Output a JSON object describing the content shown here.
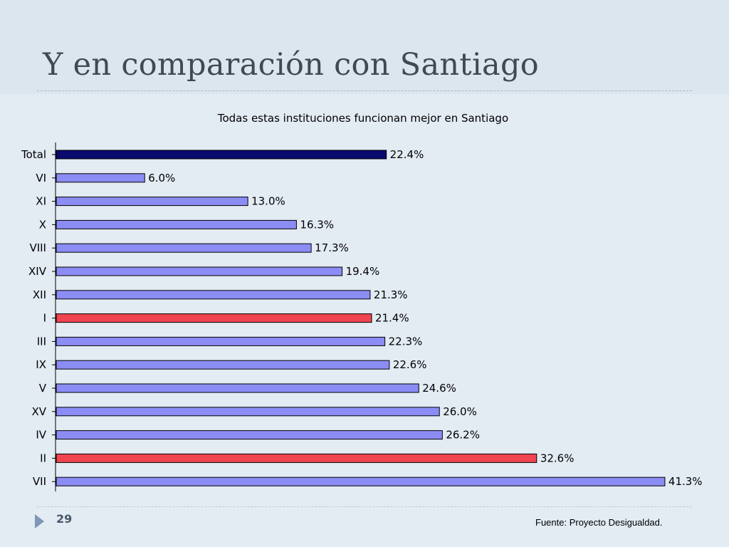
{
  "slide": {
    "title": "Y en comparación con Santiago",
    "page_number": "29",
    "source": "Fuente: Proyecto Desigualdad."
  },
  "colors": {
    "total": "#0a0a6e",
    "default": "#8c8cf5",
    "highlight": "#f04450"
  },
  "chart_data": {
    "type": "bar",
    "orientation": "horizontal",
    "title": "Todas estas instituciones funcionan mejor en Santiago",
    "xlabel": "",
    "ylabel": "",
    "xlim": [
      0,
      45
    ],
    "grid": false,
    "legend": "none",
    "value_suffix": "%",
    "categories": [
      "Total",
      "VI",
      "XI",
      "X",
      "VIII",
      "XIV",
      "XII",
      "I",
      "III",
      "IX",
      "V",
      "XV",
      "IV",
      "II",
      "VII"
    ],
    "values": [
      22.4,
      6.0,
      13.0,
      16.3,
      17.3,
      19.4,
      21.3,
      21.4,
      22.3,
      22.6,
      24.6,
      26.0,
      26.2,
      32.6,
      41.3
    ],
    "labels": [
      "22.4%",
      "6.0%",
      "13.0%",
      "16.3%",
      "17.3%",
      "19.4%",
      "21.3%",
      "21.4%",
      "22.3%",
      "22.6%",
      "24.6%",
      "26.0%",
      "26.2%",
      "32.6%",
      "41.3%"
    ],
    "bar_color_keys": [
      "total",
      "default",
      "default",
      "default",
      "default",
      "default",
      "default",
      "highlight",
      "default",
      "default",
      "default",
      "default",
      "default",
      "highlight",
      "default"
    ]
  }
}
